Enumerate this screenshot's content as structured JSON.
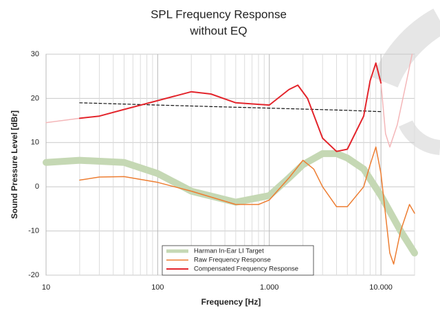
{
  "chart_data": {
    "type": "line",
    "title": "SPL Frequency Response",
    "subtitle": "without EQ",
    "x_label": "Frequency [Hz]",
    "y_label": "Sound Pressure Level [dBr]",
    "xscale": "log",
    "xlim": [
      10,
      20000
    ],
    "xticks": [
      10,
      100,
      {
        "value": 1000,
        "label": "1.000"
      },
      {
        "value": 10000,
        "label": "10.000"
      }
    ],
    "ylim": [
      -20,
      30
    ],
    "yticks": [
      -20,
      -10,
      0,
      10,
      20,
      30
    ],
    "grid": true,
    "series": [
      {
        "name": "Harman In-Ear LI Target",
        "color": "#c5d8b4",
        "width": 10,
        "x": [
          10,
          20,
          50,
          100,
          200,
          500,
          1000,
          1500,
          2000,
          3000,
          4000,
          5000,
          7000,
          10000,
          15000,
          20000
        ],
        "values": [
          5.5,
          6,
          5.5,
          3,
          -1,
          -3.5,
          -2,
          2,
          5,
          7.5,
          7.5,
          6.5,
          4,
          -2,
          -10,
          -15
        ]
      },
      {
        "name": "Raw Frequency Response",
        "color": "#ed7d31",
        "width": 1.5,
        "x": [
          20,
          30,
          50,
          100,
          200,
          500,
          800,
          1000,
          1500,
          2000,
          2500,
          3000,
          4000,
          5000,
          7000,
          8000,
          9000,
          10000,
          12000,
          13000,
          15000,
          18000,
          20000
        ],
        "values": [
          1.5,
          2.2,
          2.3,
          1,
          -1,
          -4,
          -4,
          -3,
          2,
          6,
          4,
          0,
          -4.5,
          -4.5,
          0,
          5,
          9,
          3,
          -15,
          -17.5,
          -10,
          -4,
          -6
        ]
      },
      {
        "name": "Compensated Frequency Response",
        "color": "#e3242b",
        "width": 2,
        "x": [
          20,
          30,
          50,
          100,
          200,
          300,
          500,
          1000,
          1500,
          1800,
          2200,
          3000,
          4000,
          5000,
          7000,
          8000,
          9000,
          10000
        ],
        "values": [
          15.5,
          16,
          17.5,
          19.5,
          21.5,
          21,
          19,
          18.5,
          22,
          23,
          20,
          11,
          8,
          8.5,
          16,
          24,
          28,
          23.5
        ]
      },
      {
        "color": "#f4b6b8",
        "width": 1.5,
        "x": [
          10,
          20
        ],
        "values": [
          14.5,
          15.5
        ]
      },
      {
        "color": "#f4b6b8",
        "width": 1.5,
        "x": [
          10000,
          11000,
          12000,
          14000,
          17000,
          19000
        ],
        "values": [
          23.5,
          12,
          9,
          14,
          24,
          30
        ]
      },
      {
        "color": "#111111",
        "width": 1.2,
        "dash": "4,3",
        "x": [
          20,
          100,
          500,
          1000,
          5000,
          10000
        ],
        "values": [
          19,
          18.5,
          18,
          17.8,
          17.3,
          17
        ]
      }
    ]
  }
}
